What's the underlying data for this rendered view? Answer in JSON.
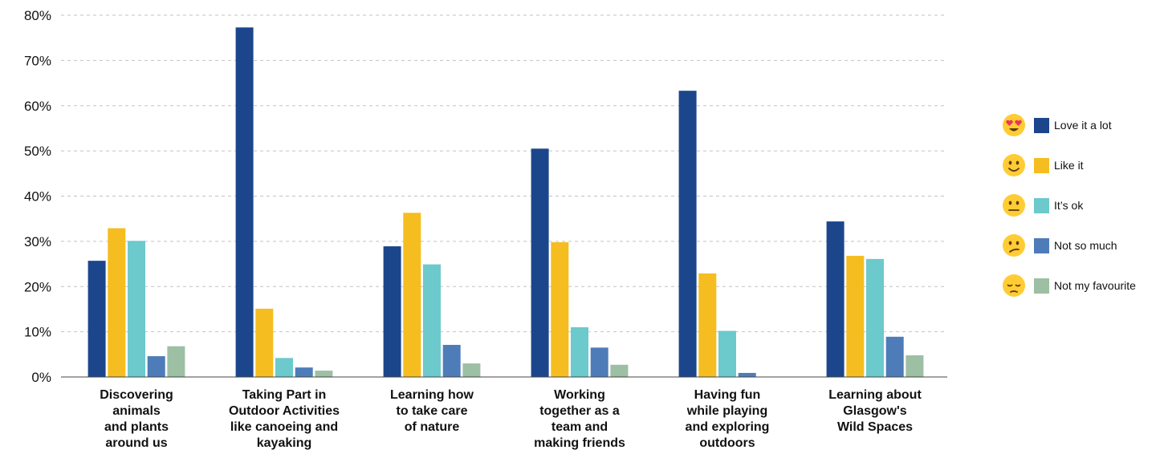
{
  "chart_data": {
    "type": "bar",
    "categories": [
      [
        "Discovering",
        "animals",
        "and plants",
        "around us"
      ],
      [
        "Taking Part in",
        "Outdoor Activities",
        "like canoeing and",
        "kayaking"
      ],
      [
        "Learning how",
        "to take care",
        "of nature"
      ],
      [
        "Working",
        "together as a",
        "team and",
        "making friends"
      ],
      [
        "Having fun",
        "while playing",
        "and exploring",
        "outdoors"
      ],
      [
        "Learning about",
        "Glasgow's",
        "Wild Spaces"
      ]
    ],
    "series": [
      {
        "name": "Love it a lot",
        "color": "#1C468C",
        "icon": "heart-eyes-emoji-icon",
        "values": [
          25.7,
          77.3,
          28.9,
          50.5,
          63.3,
          34.4
        ]
      },
      {
        "name": "Like it",
        "color": "#F5BD1F",
        "icon": "smiling-emoji-icon",
        "values": [
          32.9,
          15.1,
          36.3,
          29.8,
          22.9,
          26.8
        ]
      },
      {
        "name": "It’s ok",
        "color": "#6CC9CC",
        "icon": "neutral-emoji-icon",
        "values": [
          30.1,
          4.2,
          24.9,
          11.0,
          10.2,
          26.1
        ]
      },
      {
        "name": "Not so much",
        "color": "#4E7CB8",
        "icon": "confused-emoji-icon",
        "values": [
          4.6,
          2.1,
          7.1,
          6.5,
          0.9,
          8.9
        ]
      },
      {
        "name": "Not my favourite",
        "color": "#9DBFA4",
        "icon": "pensive-emoji-icon",
        "values": [
          6.8,
          1.4,
          3.0,
          2.7,
          0.0,
          4.8
        ]
      }
    ],
    "yticks": [
      "0%",
      "10%",
      "20%",
      "30%",
      "40%",
      "50%",
      "60%",
      "70%",
      "80%"
    ],
    "ylim": [
      0,
      80
    ],
    "grid": true,
    "legend": "right"
  }
}
